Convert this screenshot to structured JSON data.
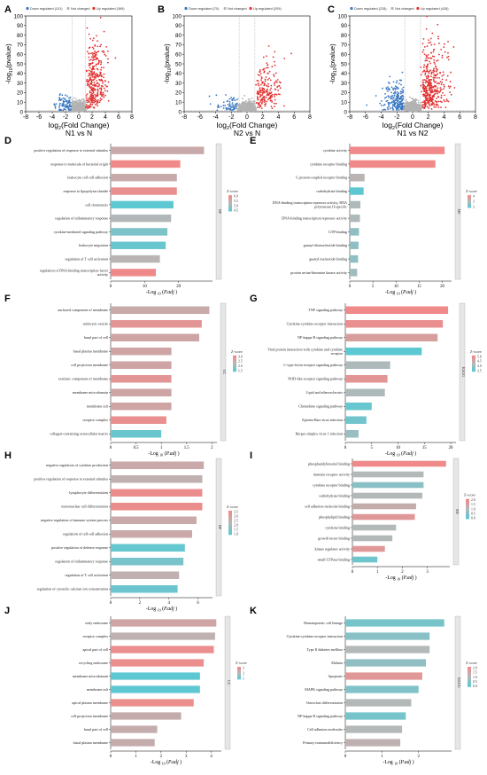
{
  "chart_data": [
    {
      "panel": "A",
      "type": "scatter",
      "legend": [
        "Down regulated (101)",
        "Not changed",
        "Up regulated (369)"
      ],
      "xlabel": "log2(Fold Change)",
      "ylabel": "-log10(pvalue)",
      "subtitle": "N1 vs N",
      "xlim": [
        -8,
        8
      ],
      "ylim": [
        0,
        100
      ],
      "xticks": [
        -8,
        -6,
        -4,
        -2,
        0,
        2,
        4,
        6,
        8
      ],
      "yticks": [
        0,
        10,
        20,
        30,
        40,
        50,
        60,
        70,
        80,
        90,
        100
      ],
      "counts": {
        "down": 101,
        "up": 369
      }
    },
    {
      "panel": "B",
      "type": "scatter",
      "legend": [
        "Down regulated (70)",
        "Not changed",
        "Up regulated (209)"
      ],
      "xlabel": "log2(Fold Change)",
      "ylabel": "-log10(pvalue)",
      "subtitle": "N2 vs N",
      "xlim": [
        -8,
        8
      ],
      "ylim": [
        0,
        100
      ],
      "xticks": [
        -8,
        -6,
        -4,
        -2,
        0,
        2,
        4,
        6,
        8
      ],
      "yticks": [
        0,
        10,
        20,
        30,
        40,
        50,
        60,
        70,
        80,
        90,
        100
      ],
      "counts": {
        "down": 70,
        "up": 209
      }
    },
    {
      "panel": "C",
      "type": "scatter",
      "legend": [
        "Down regulated (228)",
        "Not changed",
        "Up regulated (428)"
      ],
      "xlabel": "log2(Fold Change)",
      "ylabel": "-log10(pvalue)",
      "subtitle": "N1 vs N2",
      "xlim": [
        -8,
        8
      ],
      "ylim": [
        0,
        100
      ],
      "xticks": [
        -8,
        -6,
        -4,
        -2,
        0,
        2,
        4,
        6,
        8
      ],
      "yticks": [
        0,
        10,
        20,
        30,
        40,
        50,
        60,
        70,
        80,
        90,
        100
      ],
      "counts": {
        "down": 228,
        "up": 428
      }
    },
    {
      "panel": "D",
      "type": "bar",
      "category": "BP",
      "xlabel": "-Log 10 (P.adj )",
      "xlim": [
        0,
        30
      ],
      "xticks": [
        0,
        10,
        20
      ],
      "zlabel": "Z-score",
      "zticks": [
        "6.0",
        "5.5",
        "5.0",
        "4.5"
      ],
      "zrange": [
        4.5,
        6.2
      ],
      "bars": [
        {
          "label": "positive regulation of response to external stimulus",
          "value": 27.5,
          "z": 5.6
        },
        {
          "label": "response to molecule of bacterial origin",
          "value": 20.5,
          "z": 6.2
        },
        {
          "label": "leukocyte cell-cell adhesion",
          "value": 19.5,
          "z": 5.6
        },
        {
          "label": "response to lipopolysaccharide",
          "value": 19.5,
          "z": 6.1
        },
        {
          "label": "cell chemotaxis",
          "value": 18.5,
          "z": 4.5
        },
        {
          "label": "regulation of inflammatory response",
          "value": 17.8,
          "z": 5.3
        },
        {
          "label": "cytokine-mediated signaling pathway",
          "value": 16.7,
          "z": 4.8
        },
        {
          "label": "leukocyte migration",
          "value": 16.2,
          "z": 4.6
        },
        {
          "label": "regulation of T cell activation",
          "value": 14.5,
          "z": 5.4
        },
        {
          "label": "regulation of DNA-binding transcription factor activity",
          "value": 13.3,
          "z": 6.2
        }
      ]
    },
    {
      "panel": "E",
      "type": "bar",
      "category": "MF",
      "xlabel": "-Log 10 (P.adj )",
      "xlim": [
        0,
        22
      ],
      "xticks": [
        0,
        5,
        10,
        15,
        20
      ],
      "zlabel": "Z-score",
      "zticks": [
        "4",
        "3",
        "2"
      ],
      "zrange": [
        2,
        4.2
      ],
      "bars": [
        {
          "label": "cytokine activity",
          "value": 20.5,
          "z": 4.2
        },
        {
          "label": "cytokine receptor binding",
          "value": 18.5,
          "z": 4.2
        },
        {
          "label": "G protein-coupled receptor binding",
          "value": 3.2,
          "z": 3.2
        },
        {
          "label": "carbohydrate binding",
          "value": 3.0,
          "z": 2.0
        },
        {
          "label": "DNA-binding transcription repressor activity, RNA polymerase II-specific",
          "value": 2.3,
          "z": 3.0
        },
        {
          "label": "DNA-binding transcription repressor activity",
          "value": 2.2,
          "z": 3.0
        },
        {
          "label": "GTP binding",
          "value": 2.0,
          "z": 2.6
        },
        {
          "label": "guanyl ribonucleotide binding",
          "value": 1.9,
          "z": 2.6
        },
        {
          "label": "guanyl nucleotide binding",
          "value": 1.8,
          "z": 2.6
        },
        {
          "label": "protein serine/threonine kinase activity",
          "value": 1.6,
          "z": 2.8
        }
      ]
    },
    {
      "panel": "F",
      "type": "bar",
      "category": "CC",
      "xlabel": "-Log 10 (P.adj )",
      "xlim": [
        0,
        2.1
      ],
      "xticks": [
        0.0,
        0.5,
        1.0,
        1.5,
        2.0
      ],
      "zlabel": "Z-score",
      "zticks": [
        "3.0",
        "2.5",
        "2.0",
        "1.5"
      ],
      "zrange": [
        1.4,
        3.1
      ],
      "bars": [
        {
          "label": "anchored component of membrane",
          "value": 1.95,
          "z": 2.5
        },
        {
          "label": "endocytic vesicle",
          "value": 1.8,
          "z": 2.9
        },
        {
          "label": "basal part of cell",
          "value": 1.75,
          "z": 2.6
        },
        {
          "label": "basal plasma membrane",
          "value": 1.2,
          "z": 2.6
        },
        {
          "label": "cell projection membrane",
          "value": 1.2,
          "z": 2.6
        },
        {
          "label": "extrinsic component of membrane",
          "value": 1.2,
          "z": 2.9
        },
        {
          "label": "membrane microdomain",
          "value": 1.2,
          "z": 2.6
        },
        {
          "label": "membrane raft",
          "value": 1.2,
          "z": 2.6
        },
        {
          "label": "receptor complex",
          "value": 1.1,
          "z": 3.0
        },
        {
          "label": "collagen-containing extracellular matrix",
          "value": 1.0,
          "z": 1.5
        }
      ]
    },
    {
      "panel": "G",
      "type": "bar",
      "category": "KEGG",
      "xlabel": "-Log 10 (P.adj )",
      "xlim": [
        0,
        21
      ],
      "xticks": [
        0,
        5,
        10,
        15,
        20
      ],
      "zlabel": "Z-score",
      "zticks": [
        "5.0",
        "4.5",
        "4.0",
        "3.5"
      ],
      "zrange": [
        3.3,
        5.1
      ],
      "bars": [
        {
          "label": "TNF signaling pathway",
          "value": 19.5,
          "z": 5.1
        },
        {
          "label": "Cytokine-cytokine receptor interaction",
          "value": 18.5,
          "z": 5.0
        },
        {
          "label": "NF-kappa B signaling pathway",
          "value": 17.5,
          "z": 4.7
        },
        {
          "label": "Viral protein interaction with cytokine and cytokine receptor",
          "value": 14.5,
          "z": 3.3
        },
        {
          "label": "C-type lectin receptor signaling pathway",
          "value": 8.5,
          "z": 4.1
        },
        {
          "label": "NOD-like receptor signaling pathway",
          "value": 8.0,
          "z": 4.9
        },
        {
          "label": "Lipid and atherosclerosis",
          "value": 7.5,
          "z": 4.1
        },
        {
          "label": "Chemokine signaling pathway",
          "value": 5.0,
          "z": 3.4
        },
        {
          "label": "Epstein-Barr virus infection",
          "value": 4.0,
          "z": 3.5
        },
        {
          "label": "Herpes simplex virus 1 infection",
          "value": 2.5,
          "z": 3.9
        }
      ]
    },
    {
      "panel": "H",
      "type": "bar",
      "category": "BP",
      "xlabel": "-Log 10 (P.adj )",
      "xlim": [
        0,
        7
      ],
      "xticks": [
        0,
        2,
        4,
        6
      ],
      "zlabel": "Z-score",
      "zticks": [
        "3.5",
        "3.0",
        "2.5",
        "2.0",
        "1.5",
        "1.0"
      ],
      "zrange": [
        1.0,
        3.6
      ],
      "bars": [
        {
          "label": "negative regulation of cytokine production",
          "value": 6.4,
          "z": 2.7
        },
        {
          "label": "positive regulation of response to external stimulus",
          "value": 6.3,
          "z": 2.5
        },
        {
          "label": "lymphocyte differentiation",
          "value": 6.3,
          "z": 3.5
        },
        {
          "label": "mononuclear cell differentiation",
          "value": 6.3,
          "z": 3.5
        },
        {
          "label": "negative regulation of immune system process",
          "value": 5.9,
          "z": 2.7
        },
        {
          "label": "regulation of cell-cell adhesion",
          "value": 5.6,
          "z": 2.7
        },
        {
          "label": "positive regulation of defense response",
          "value": 5.1,
          "z": 1.1
        },
        {
          "label": "regulation of inflammatory response",
          "value": 5.0,
          "z": 1.4
        },
        {
          "label": "regulation of T cell activation",
          "value": 4.7,
          "z": 2.5
        },
        {
          "label": "regulation of cytosolic calcium ion concentration",
          "value": 4.6,
          "z": 1.2
        }
      ]
    },
    {
      "panel": "I",
      "type": "bar",
      "category": "MF",
      "xlabel": "-Log 10 (P.adj )",
      "xlim": [
        0,
        3.9
      ],
      "xticks": [
        0,
        1,
        2,
        3
      ],
      "zlabel": "Z-score",
      "zticks": [
        "2.0",
        "1.5",
        "1.0",
        "0.5",
        "0.0"
      ],
      "zrange": [
        0.0,
        2.1
      ],
      "bars": [
        {
          "label": "phosphatidylinositol binding",
          "value": 3.75,
          "z": 2.1
        },
        {
          "label": "immune receptor activity",
          "value": 2.85,
          "z": 1.0
        },
        {
          "label": "cytokine receptor binding",
          "value": 2.85,
          "z": 0.5
        },
        {
          "label": "carbohydrate binding",
          "value": 2.8,
          "z": 1.0
        },
        {
          "label": "cell adhesion molecule binding",
          "value": 2.55,
          "z": 1.3
        },
        {
          "label": "phospholipid binding",
          "value": 2.5,
          "z": 1.8
        },
        {
          "label": "cytokine binding",
          "value": 1.75,
          "z": 1.0
        },
        {
          "label": "growth factor binding",
          "value": 1.6,
          "z": 1.0
        },
        {
          "label": "kinase regulator activity",
          "value": 1.3,
          "z": 1.8
        },
        {
          "label": "small GTPase binding",
          "value": 1.0,
          "z": 0.2
        }
      ]
    },
    {
      "panel": "J",
      "type": "bar",
      "category": "CC",
      "xlabel": "-Log 10 (P.adj )",
      "xlim": [
        0,
        4.4
      ],
      "xticks": [
        0,
        1,
        2,
        3,
        4
      ],
      "zlabel": "Z-score",
      "zticks": [
        "3",
        "2",
        "1"
      ],
      "zrange": [
        1,
        3.1
      ],
      "bars": [
        {
          "label": "early endosome",
          "value": 4.2,
          "z": 2.5
        },
        {
          "label": "receptor complex",
          "value": 4.15,
          "z": 2.2
        },
        {
          "label": "apical part of cell",
          "value": 4.1,
          "z": 3.0
        },
        {
          "label": "recycling endosome",
          "value": 3.7,
          "z": 3.0
        },
        {
          "label": "membrane microdomain",
          "value": 3.55,
          "z": 1.0
        },
        {
          "label": "membrane raft",
          "value": 3.55,
          "z": 1.0
        },
        {
          "label": "apical plasma membrane",
          "value": 3.3,
          "z": 3.0
        },
        {
          "label": "cell projection membrane",
          "value": 2.8,
          "z": 2.3
        },
        {
          "label": "basal part of cell",
          "value": 1.85,
          "z": 2.3
        },
        {
          "label": "basal plasma membrane",
          "value": 1.75,
          "z": 2.3
        }
      ]
    },
    {
      "panel": "K",
      "type": "bar",
      "category": "KEGG",
      "xlabel": "-Log 10 (P.adj )",
      "xlim": [
        0,
        2.9
      ],
      "xticks": [
        0,
        1,
        2
      ],
      "zlabel": "Z-score",
      "zticks": [
        "2.0",
        "1.5",
        "1.0",
        "0.5",
        "0.0"
      ],
      "zrange": [
        0.0,
        2.1
      ],
      "bars": [
        {
          "label": "Hematopoietic cell lineage",
          "value": 2.7,
          "z": 0.3
        },
        {
          "label": "Cytokine-cytokine receptor interaction",
          "value": 2.3,
          "z": 0.5
        },
        {
          "label": "Type II diabetes mellitus",
          "value": 2.3,
          "z": 1.0
        },
        {
          "label": "Malaria",
          "value": 2.2,
          "z": 0.6
        },
        {
          "label": "Apoptosis",
          "value": 2.1,
          "z": 1.8
        },
        {
          "label": "MAPK signaling pathway",
          "value": 2.0,
          "z": 0.4
        },
        {
          "label": "Osteoclast differentiation",
          "value": 1.8,
          "z": 1.0
        },
        {
          "label": "NF-kappa B signaling pathway",
          "value": 1.65,
          "z": 0.3
        },
        {
          "label": "Cell adhesion molecules",
          "value": 1.55,
          "z": 1.0
        },
        {
          "label": "Primary immunodeficiency",
          "value": 1.5,
          "z": 1.2
        }
      ]
    }
  ],
  "colors": {
    "down": "#3a78c2",
    "not_changed": "#b3b3b3",
    "up": "#e23232",
    "z_high": "#f08a8a",
    "z_mid": "#b7b7b7",
    "z_low": "#5ec8d2"
  }
}
